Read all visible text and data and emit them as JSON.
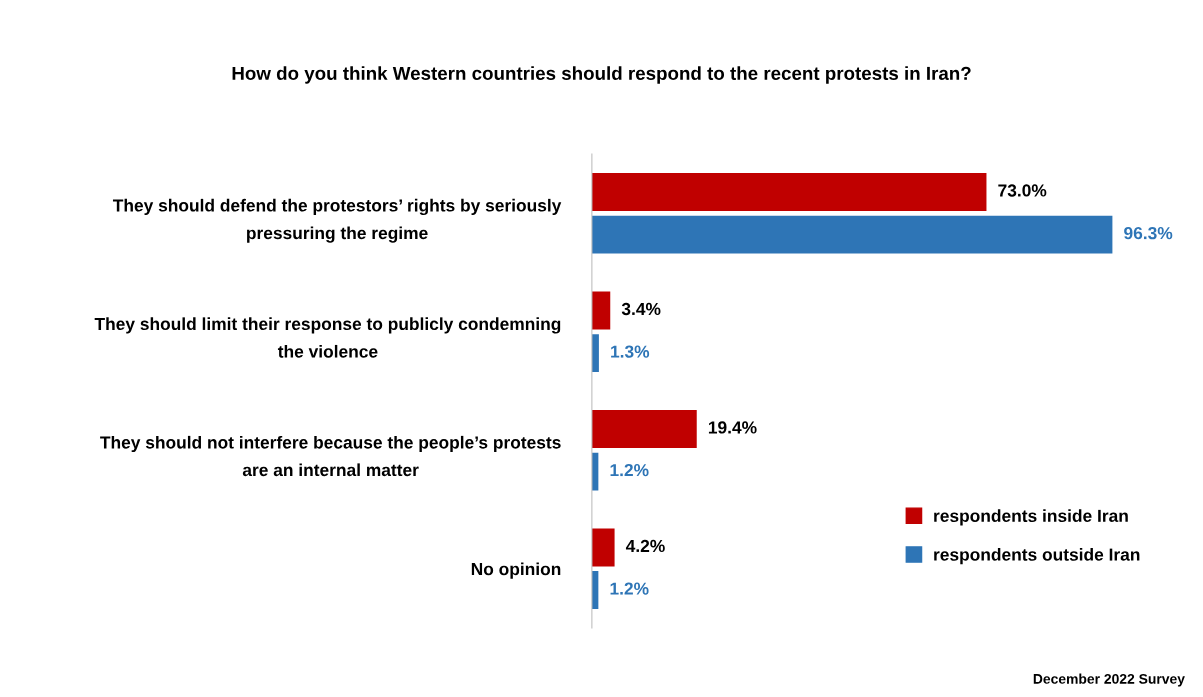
{
  "chart_data": {
    "type": "bar",
    "orientation": "horizontal",
    "title": "How do you think Western countries should respond to the recent protests in Iran?",
    "categories": [
      "They should defend the protestors’ rights by seriously\npressuring the regime",
      "They should limit their response to publicly condemning\nthe violence",
      "They should not interfere because the people’s protests\nare an internal matter",
      "No opinion"
    ],
    "series": [
      {
        "name": "respondents inside Iran",
        "color": "#c00000",
        "values": [
          73.0,
          3.4,
          19.4,
          4.2
        ],
        "value_labels": [
          "73.0%",
          "3.4%",
          "19.4%",
          "4.2%"
        ]
      },
      {
        "name": "respondents outside Iran",
        "color": "#2e75b6",
        "values": [
          96.3,
          1.3,
          1.2,
          1.2
        ],
        "value_labels": [
          "96.3%",
          "1.3%",
          "1.2%",
          "1.2%"
        ]
      }
    ],
    "legend": "bottom right",
    "grid": false,
    "annotations": [
      "December 2022 Survey"
    ]
  }
}
